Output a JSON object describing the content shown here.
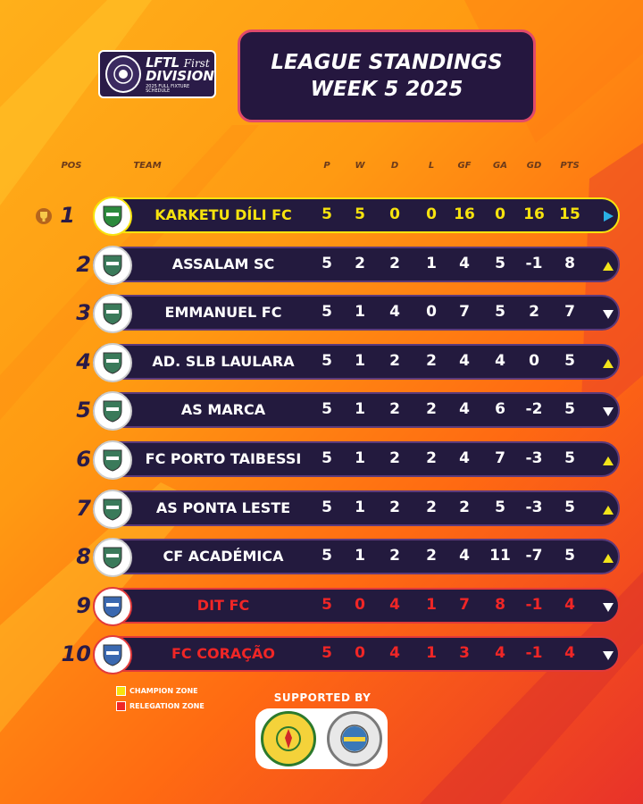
{
  "header": {
    "logo": {
      "main": "LFTL",
      "first": "First",
      "division": "DIVISION",
      "sub": "2025 FULL FIXTURE SCHEDULE"
    },
    "title_line1": "LEAGUE STANDINGS",
    "title_line2": "WEEK 5 2025"
  },
  "columns": {
    "pos": "POS",
    "team": "TEAM",
    "p": "P",
    "w": "W",
    "d": "D",
    "l": "L",
    "gf": "GF",
    "ga": "GA",
    "gd": "GD",
    "pts": "PTS"
  },
  "standings": [
    {
      "pos": "1",
      "team": "KARKETU DÍLI FC",
      "p": "5",
      "w": "5",
      "d": "0",
      "l": "0",
      "gf": "16",
      "ga": "0",
      "gd": "16",
      "pts": "15",
      "zone": "champion",
      "trend": "same"
    },
    {
      "pos": "2",
      "team": "ASSALAM SC",
      "p": "5",
      "w": "2",
      "d": "2",
      "l": "1",
      "gf": "4",
      "ga": "5",
      "gd": "-1",
      "pts": "8",
      "zone": "none",
      "trend": "up"
    },
    {
      "pos": "3",
      "team": "EMMANUEL FC",
      "p": "5",
      "w": "1",
      "d": "4",
      "l": "0",
      "gf": "7",
      "ga": "5",
      "gd": "2",
      "pts": "7",
      "zone": "none",
      "trend": "down"
    },
    {
      "pos": "4",
      "team": "AD. SLB LAULARA",
      "p": "5",
      "w": "1",
      "d": "2",
      "l": "2",
      "gf": "4",
      "ga": "4",
      "gd": "0",
      "pts": "5",
      "zone": "none",
      "trend": "up"
    },
    {
      "pos": "5",
      "team": "AS MARCA",
      "p": "5",
      "w": "1",
      "d": "2",
      "l": "2",
      "gf": "4",
      "ga": "6",
      "gd": "-2",
      "pts": "5",
      "zone": "none",
      "trend": "down"
    },
    {
      "pos": "6",
      "team": "FC PORTO TAIBESSI",
      "p": "5",
      "w": "1",
      "d": "2",
      "l": "2",
      "gf": "4",
      "ga": "7",
      "gd": "-3",
      "pts": "5",
      "zone": "none",
      "trend": "up"
    },
    {
      "pos": "7",
      "team": "AS PONTA LESTE",
      "p": "5",
      "w": "1",
      "d": "2",
      "l": "2",
      "gf": "2",
      "ga": "5",
      "gd": "-3",
      "pts": "5",
      "zone": "none",
      "trend": "up"
    },
    {
      "pos": "8",
      "team": "CF ACADÉMICA",
      "p": "5",
      "w": "1",
      "d": "2",
      "l": "2",
      "gf": "4",
      "ga": "11",
      "gd": "-7",
      "pts": "5",
      "zone": "none",
      "trend": "up"
    },
    {
      "pos": "9",
      "team": "DIT FC",
      "p": "5",
      "w": "0",
      "d": "4",
      "l": "1",
      "gf": "7",
      "ga": "8",
      "gd": "-1",
      "pts": "4",
      "zone": "relegation",
      "trend": "down"
    },
    {
      "pos": "10",
      "team": "FC CORAÇÃO",
      "p": "5",
      "w": "0",
      "d": "4",
      "l": "1",
      "gf": "3",
      "ga": "4",
      "gd": "-1",
      "pts": "4",
      "zone": "relegation",
      "trend": "down"
    }
  ],
  "legend": {
    "champion": "CHAMPION ZONE",
    "relegation": "RELEGATION ZONE"
  },
  "supported_by": "SUPPORTED BY",
  "colors": {
    "champion": "#f7e30e",
    "relegation": "#f02626",
    "bar": "#231a3e",
    "trend_up": "#f2e41a",
    "trend_same": "#2ab0e6",
    "trend_down": "#ffffff"
  }
}
